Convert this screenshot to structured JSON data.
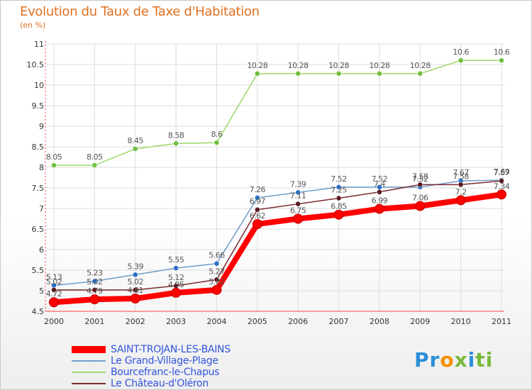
{
  "title": "Evolution du Taux de Taxe d'Habitation",
  "unit_label": "(en %)",
  "logo": {
    "parts": [
      {
        "text": "Pr",
        "color": "#2a8fd8"
      },
      {
        "text": "o",
        "color": "#f29000"
      },
      {
        "text": "x",
        "color": "#79b83a"
      },
      {
        "text": "i",
        "color": "#2a8fd8"
      },
      {
        "text": "ti",
        "color": "#79b83a"
      }
    ]
  },
  "chart_data": {
    "type": "line",
    "title": "Evolution du Taux de Taxe d'Habitation",
    "ylabel": "(en %)",
    "ylim": [
      4.5,
      11
    ],
    "yticks": [
      "4.5",
      "5",
      "5.5",
      "6",
      "6.5",
      "7",
      "7.5",
      "8",
      "8.5",
      "9",
      "9.5",
      "10",
      "10.5",
      "11"
    ],
    "categories": [
      "2000",
      "2001",
      "2002",
      "2003",
      "2004",
      "2005",
      "2006",
      "2007",
      "2008",
      "2009",
      "2010",
      "2011"
    ],
    "grid": true,
    "legend_position": "bottom-left",
    "series": [
      {
        "name": "Bourcefranc-le-Chapus",
        "color": "#9cd86a",
        "values": [
          8.05,
          8.05,
          8.45,
          8.58,
          8.6,
          10.28,
          10.28,
          10.28,
          10.28,
          10.28,
          10.6,
          10.6
        ],
        "labels": [
          "8.05",
          "8.05",
          "8.45",
          "8.58",
          "8.6",
          "10.28",
          "10.28",
          "10.28",
          "10.28",
          "10.28",
          "10.6",
          "10.6"
        ]
      },
      {
        "name": "Le Grand-Village-Plage",
        "color": "#6f9ec8",
        "values": [
          5.13,
          5.23,
          5.39,
          5.55,
          5.66,
          7.26,
          7.39,
          7.52,
          7.52,
          7.52,
          7.67,
          7.69
        ],
        "labels": [
          "5.13",
          "5.23",
          "5.39",
          "5.55",
          "5.66",
          "7.26",
          "7.39",
          "7.52",
          "7.52",
          "7.52",
          "7.67",
          "7.69"
        ]
      },
      {
        "name": "Le Château-d'Oléron",
        "color": "#7a2a30",
        "values": [
          5.02,
          5.02,
          5.02,
          5.12,
          5.27,
          6.97,
          7.11,
          7.25,
          7.4,
          7.58,
          7.58,
          7.67
        ],
        "labels": [
          "5.02",
          "5.02",
          "5.02",
          "5.12",
          "5.27",
          "6.97",
          "7.11",
          "7.25",
          "7.4",
          "7.58",
          "7.58",
          "7.67"
        ]
      },
      {
        "name": "SAINT-TROJAN-LES-BAINS",
        "color": "#ff0000",
        "values": [
          4.72,
          4.79,
          4.81,
          4.95,
          5.02,
          6.62,
          6.75,
          6.85,
          6.99,
          7.06,
          7.2,
          7.34
        ],
        "labels": [
          "4.72",
          "4.79",
          "4.81",
          "4.95",
          "5.02",
          "6.62",
          "6.75",
          "6.85",
          "6.99",
          "7.06",
          "7.2",
          "7.34"
        ]
      }
    ],
    "legend": [
      {
        "name": "SAINT-TROJAN-LES-BAINS",
        "color": "#ff0000",
        "width": 10
      },
      {
        "name": "Le Grand-Village-Plage",
        "color": "#6f9ec8",
        "width": 2
      },
      {
        "name": "Bourcefranc-le-Chapus",
        "color": "#9cd86a",
        "width": 2
      },
      {
        "name": "Le Château-d'Oléron",
        "color": "#7a2a30",
        "width": 2
      }
    ]
  }
}
